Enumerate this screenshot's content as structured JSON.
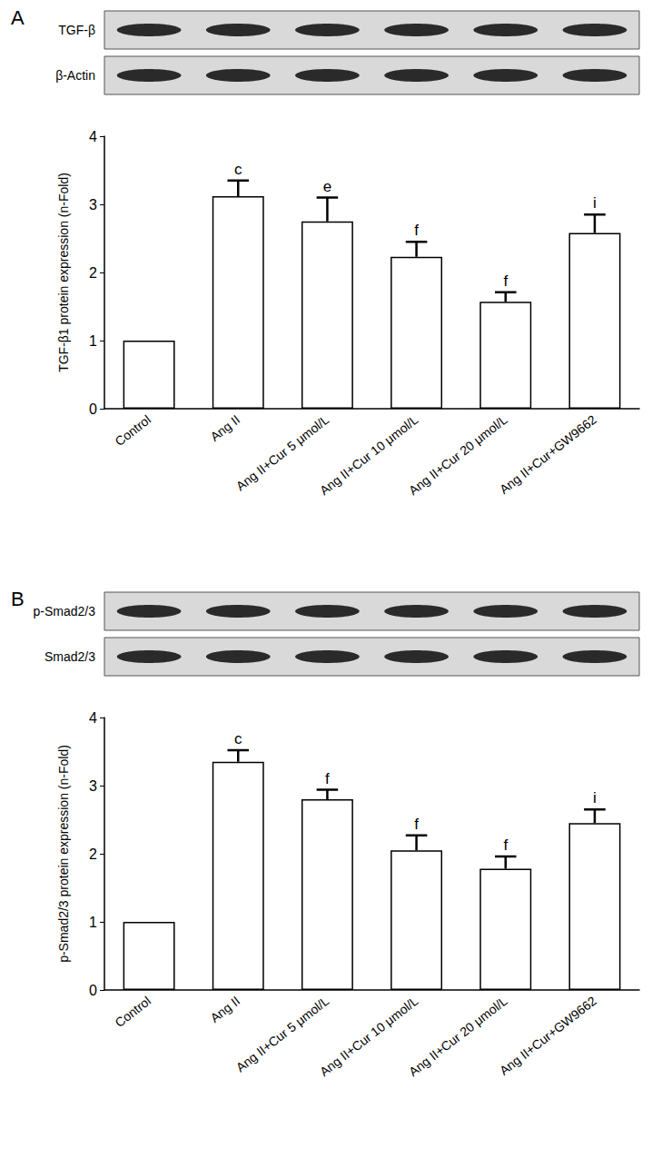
{
  "chart_data": [
    {
      "type": "bar",
      "panel": "A",
      "blots": [
        "TGF-β",
        "β-Actin"
      ],
      "ylabel": "TGF-β1 protein expression (n-Fold)",
      "categories": [
        "Control",
        "Ang II",
        "Ang II+Cur 5 μmol/L",
        "Ang II+Cur 10 μmol/L",
        "Ang II+Cur 20 μmol/L",
        "Ang II+Cur+GW9662"
      ],
      "values": [
        1.0,
        3.12,
        2.75,
        2.23,
        1.57,
        2.58
      ],
      "errors": [
        0,
        0.23,
        0.35,
        0.22,
        0.14,
        0.27
      ],
      "significance": [
        null,
        "c",
        "e",
        "f",
        "f",
        "i"
      ],
      "color": "#ffffff",
      "ylim": [
        0,
        4
      ],
      "yticks": [
        0,
        1,
        2,
        3,
        4
      ],
      "grid": false
    },
    {
      "type": "bar",
      "panel": "B",
      "blots": [
        "p-Smad2/3",
        "Smad2/3"
      ],
      "ylabel": "p-Smad2/3 protein expression (n-Fold)",
      "categories": [
        "Control",
        "Ang II",
        "Ang II+Cur 5 μmol/L",
        "Ang II+Cur 10 μmol/L",
        "Ang II+Cur 20 μmol/L",
        "Ang II+Cur+GW9662"
      ],
      "values": [
        1.0,
        3.35,
        2.8,
        2.05,
        1.78,
        2.45
      ],
      "errors": [
        0,
        0.17,
        0.14,
        0.22,
        0.18,
        0.2
      ],
      "significance": [
        null,
        "c",
        "f",
        "f",
        "f",
        "i"
      ],
      "color": "#ffffff",
      "ylim": [
        0,
        4
      ],
      "yticks": [
        0,
        1,
        2,
        3,
        4
      ],
      "grid": false
    }
  ]
}
